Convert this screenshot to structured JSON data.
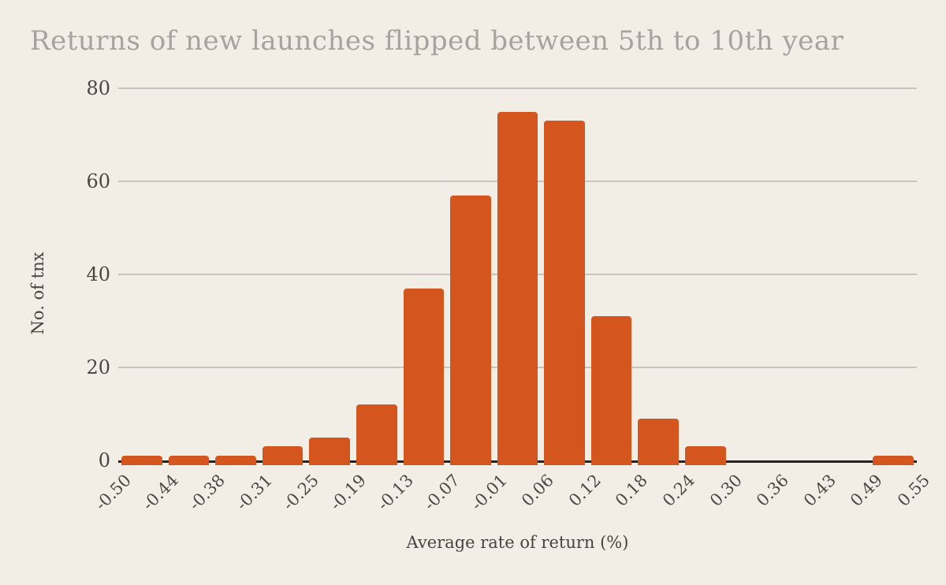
{
  "chart_data": {
    "type": "bar",
    "title": "Returns of new launches flipped between 5th to 10th year",
    "xlabel": "Average rate of return (%)",
    "ylabel": "No. of tnx",
    "x_tick_labels": [
      "-0.50",
      "-0.44",
      "-0.38",
      "-0.31",
      "-0.25",
      "-0.19",
      "-0.13",
      "-0.07",
      "-0.01",
      "0.06",
      "0.12",
      "0.18",
      "0.24",
      "0.30",
      "0.36",
      "0.43",
      "0.49",
      "0.55"
    ],
    "values": [
      1,
      1,
      1,
      3,
      5,
      12,
      37,
      57,
      75,
      73,
      31,
      9,
      3,
      0,
      0,
      0,
      1
    ],
    "y_ticks": [
      0,
      20,
      40,
      60,
      80
    ],
    "ylim": [
      0,
      80
    ],
    "grid": "horizontal-only",
    "legend": "none",
    "colors": {
      "bar": "#d4561e",
      "background": "#f2ede5",
      "gridline": "#c7c4bf",
      "axis_line": "#26231f",
      "title_text": "#a6a39f",
      "tick_text": "#4b4843",
      "axis_title_text": "#47443f"
    }
  }
}
